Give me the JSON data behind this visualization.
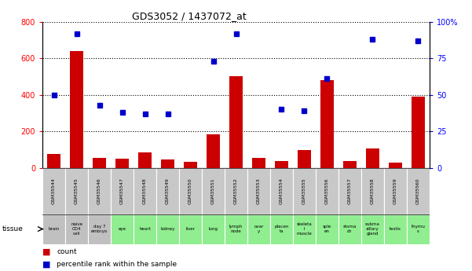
{
  "title": "GDS3052 / 1437072_at",
  "gsm_labels": [
    "GSM35544",
    "GSM35545",
    "GSM35546",
    "GSM35547",
    "GSM35548",
    "GSM35549",
    "GSM35550",
    "GSM35551",
    "GSM35552",
    "GSM35553",
    "GSM35554",
    "GSM35555",
    "GSM35556",
    "GSM35557",
    "GSM35558",
    "GSM35559",
    "GSM35560"
  ],
  "tissue_labels": [
    "brain",
    "naive\nCD4\ncell",
    "day 7\nembryо",
    "eye",
    "heart",
    "kidney",
    "liver",
    "lung",
    "lymph\nnode",
    "ovar\ny",
    "placen\nta",
    "skeleta\nl\nmuscle",
    "sple\nen",
    "stoma\nch",
    "subma\nxillary\ngland",
    "testis",
    "thymu\ns"
  ],
  "tissue_colors": [
    "#c0c0c0",
    "#c0c0c0",
    "#c0c0c0",
    "#90ee90",
    "#90ee90",
    "#90ee90",
    "#90ee90",
    "#90ee90",
    "#90ee90",
    "#90ee90",
    "#90ee90",
    "#90ee90",
    "#90ee90",
    "#90ee90",
    "#90ee90",
    "#90ee90",
    "#90ee90"
  ],
  "count_values": [
    75,
    640,
    55,
    50,
    85,
    45,
    35,
    185,
    500,
    55,
    40,
    100,
    480,
    40,
    105,
    30,
    390
  ],
  "dot_positions": [
    0,
    1,
    2,
    3,
    4,
    5,
    7,
    8,
    10,
    11,
    12,
    14,
    16
  ],
  "dot_values_pct": [
    50,
    92,
    43,
    38,
    37,
    37,
    73,
    92,
    40,
    39,
    61,
    88,
    87
  ],
  "bar_color": "#cc0000",
  "dot_color": "#0000cc",
  "ylim_left": [
    0,
    800
  ],
  "ylim_right": [
    0,
    100
  ],
  "yticks_left": [
    0,
    200,
    400,
    600,
    800
  ],
  "yticks_right": [
    0,
    25,
    50,
    75,
    100
  ],
  "ytick_right_labels": [
    "0",
    "25",
    "50",
    "75",
    "100%"
  ],
  "background_color": "#ffffff"
}
